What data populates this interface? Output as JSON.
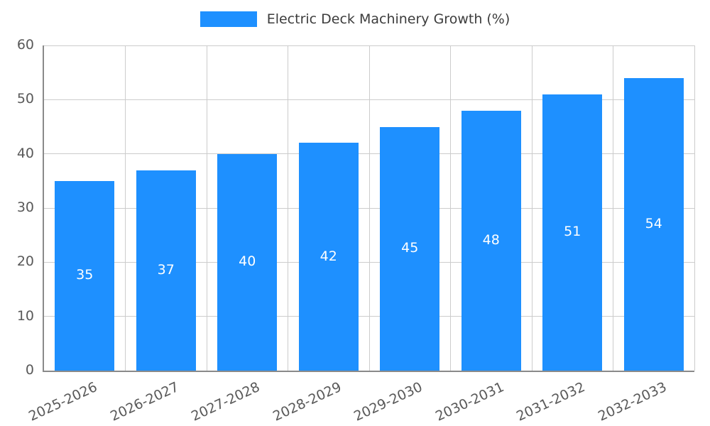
{
  "chart_data": {
    "type": "bar",
    "title": "Electric Deck Machinery Growth (%)",
    "categories": [
      "2025-2026",
      "2026-2027",
      "2027-2028",
      "2028-2029",
      "2029-2030",
      "2030-2031",
      "2031-2032",
      "2032-2033"
    ],
    "values": [
      35,
      37,
      40,
      42,
      45,
      48,
      51,
      54
    ],
    "xlabel": "",
    "ylabel": "",
    "ylim": [
      0,
      60
    ],
    "yticks": [
      0,
      10,
      20,
      30,
      40,
      50,
      60
    ],
    "grid": true,
    "legend_position": "top",
    "bar_color": "#1E90FF",
    "value_label_color": "#FFFFFF",
    "grid_color": "#CCCCCC",
    "axis_color": "#8A8A8A",
    "tick_label_color": "#595959",
    "background_color": "#FFFFFF"
  },
  "legend": {
    "label": "Electric Deck Machinery Growth (%)"
  }
}
